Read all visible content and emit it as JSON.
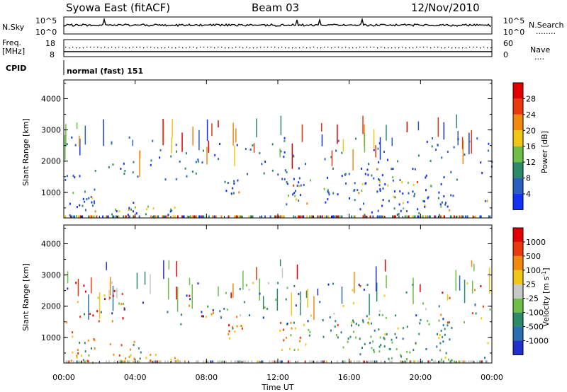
{
  "header": {
    "title": "Syowa East (fitACF)",
    "beam": "Beam 03",
    "date": "12/Nov/2010"
  },
  "params": {
    "nsky_label": "N.Sky",
    "nsearch_label": "N.Search",
    "nsearch_marker": "........",
    "left_top_ticks": [
      "10^5",
      "10^0"
    ],
    "right_top_ticks": [
      "10^5",
      "10^0"
    ],
    "freq_label": "Freq.",
    "freq_unit": "[MHz]",
    "freq_ticks": [
      "18",
      "8"
    ],
    "nave_label": "Nave",
    "nave_marker": "....",
    "nave_ticks": [
      "60",
      "0"
    ],
    "cpid_label": "CPID",
    "cpid_value": "normal (fast) 151"
  },
  "chart_data": [
    {
      "type": "heatmap",
      "name": "power-panel",
      "ylabel": "Slant Range [km]",
      "xlabel": "",
      "ylim": [
        180,
        4600
      ],
      "xlim": [
        0,
        24
      ],
      "yticks": [
        "1000",
        "2000",
        "3000",
        "4000"
      ],
      "colorbar": {
        "label": "Power [dB]",
        "ticks": [
          "4",
          "8",
          "12",
          "16",
          "20",
          "24",
          "28"
        ],
        "colors": [
          "#1432f5",
          "#2a5fbe",
          "#2e8a66",
          "#6cc04a",
          "#f2c615",
          "#f08a0e",
          "#e83a0c",
          "#e00000"
        ]
      },
      "echo_regions": [
        {
          "t0": 0.3,
          "t1": 1.8,
          "r0": 220,
          "r1": 1200,
          "density": 0.7
        },
        {
          "t0": 2.5,
          "t1": 4.2,
          "r0": 220,
          "r1": 900,
          "density": 0.55
        },
        {
          "t0": 4.2,
          "t1": 6.5,
          "r0": 220,
          "r1": 600,
          "density": 0.6
        },
        {
          "t0": 9.0,
          "t1": 10.0,
          "r0": 900,
          "r1": 1500,
          "density": 0.75
        },
        {
          "t0": 12.0,
          "t1": 13.8,
          "r0": 600,
          "r1": 1500,
          "density": 0.6
        },
        {
          "t0": 14.5,
          "t1": 16.5,
          "r0": 700,
          "r1": 1600,
          "density": 0.45
        },
        {
          "t0": 16.5,
          "t1": 19.0,
          "r0": 300,
          "r1": 1800,
          "density": 0.55
        },
        {
          "t0": 19.0,
          "t1": 21.8,
          "r0": 300,
          "r1": 1600,
          "density": 0.45
        },
        {
          "t0": 23.5,
          "t1": 23.9,
          "r0": 300,
          "r1": 900,
          "density": 0.5
        }
      ]
    },
    {
      "type": "heatmap",
      "name": "velocity-panel",
      "ylabel": "Slant Range [km]",
      "xlabel": "Time UT",
      "ylim": [
        180,
        4600
      ],
      "xlim": [
        0,
        24
      ],
      "yticks": [
        "1000",
        "2000",
        "3000",
        "4000"
      ],
      "xticks": [
        "00:00",
        "04:00",
        "08:00",
        "12:00",
        "16:00",
        "20:00",
        "00:00"
      ],
      "colorbar": {
        "label": "Velocity [m s^-1]",
        "ticks": [
          "1000",
          "500",
          "100",
          "25",
          "-25",
          "-100",
          "-500",
          "-1000"
        ],
        "colors": [
          "#2030c8",
          "#2a6fb0",
          "#2e8a66",
          "#6cc04a",
          "#c8c8c8",
          "#f2c615",
          "#f08a0e",
          "#e83a0c",
          "#e00000"
        ]
      },
      "echo_regions": [
        {
          "t0": 0.3,
          "t1": 1.8,
          "r0": 220,
          "r1": 1200,
          "density": 0.7
        },
        {
          "t0": 2.5,
          "t1": 4.2,
          "r0": 220,
          "r1": 900,
          "density": 0.55
        },
        {
          "t0": 4.2,
          "t1": 6.5,
          "r0": 220,
          "r1": 600,
          "density": 0.6
        },
        {
          "t0": 9.0,
          "t1": 10.0,
          "r0": 900,
          "r1": 1500,
          "density": 0.75
        },
        {
          "t0": 12.0,
          "t1": 13.8,
          "r0": 600,
          "r1": 1500,
          "density": 0.6
        },
        {
          "t0": 14.5,
          "t1": 16.5,
          "r0": 700,
          "r1": 1600,
          "density": 0.45
        },
        {
          "t0": 16.5,
          "t1": 19.0,
          "r0": 300,
          "r1": 1800,
          "density": 0.55
        },
        {
          "t0": 19.0,
          "t1": 21.8,
          "r0": 300,
          "r1": 1600,
          "density": 0.45
        },
        {
          "t0": 23.5,
          "t1": 23.9,
          "r0": 300,
          "r1": 900,
          "density": 0.5
        }
      ]
    }
  ]
}
